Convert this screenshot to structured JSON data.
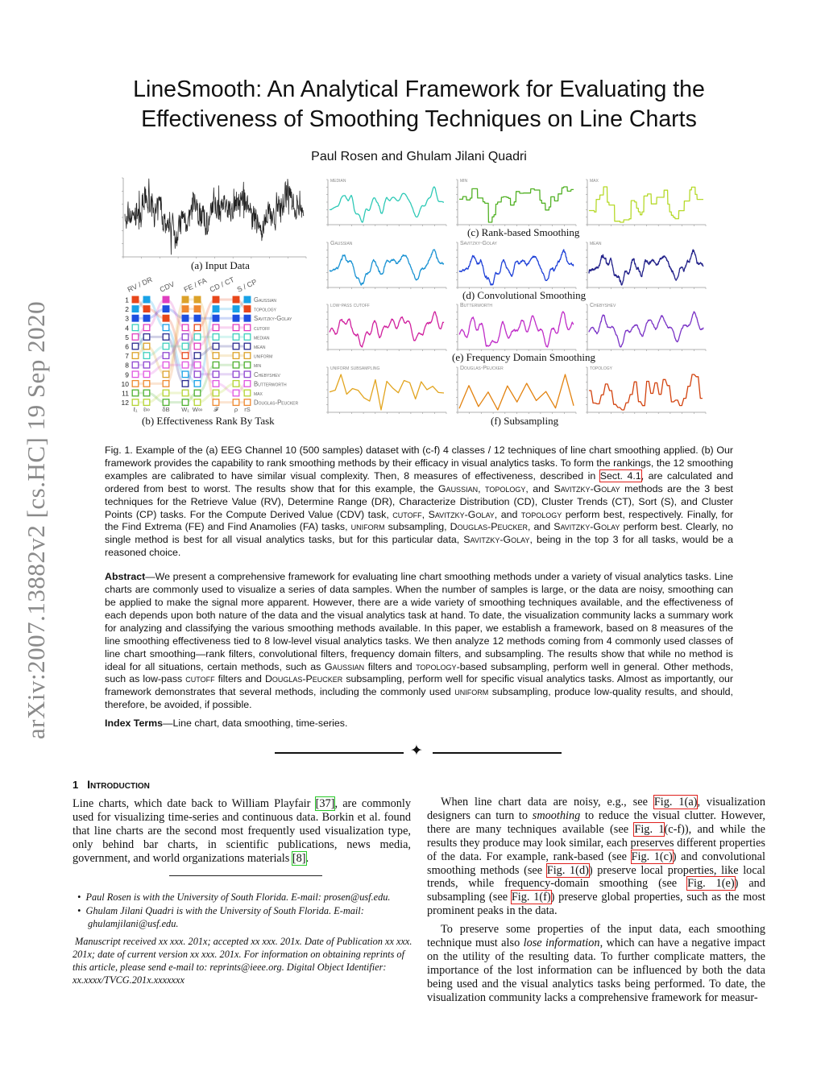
{
  "arxiv_stamp": "arXiv:2007.13882v2  [cs.HC]  19 Sep 2020",
  "title_line1": "LineSmooth: An Analytical Framework for Evaluating the",
  "title_line2": "Effectiveness of Smoothing Techniques on Line Charts",
  "authors": "Paul Rosen and Ghulam Jilani Quadri",
  "figure": {
    "sub_a": "(a)  Input Data",
    "sub_b": "(b)  Effectiveness Rank By Task",
    "sub_c": "(c)  Rank-based Smoothing",
    "sub_d": "(d)  Convolutional Smoothing",
    "sub_e": "(e)  Frequency Domain Smoothing",
    "sub_f": "(f)  Subsampling",
    "panels": [
      {
        "label": "median",
        "color": "#2ec9b6"
      },
      {
        "label": "min",
        "color": "#52b125"
      },
      {
        "label": "max",
        "color": "#b6d92a"
      },
      {
        "label": "Gaussian",
        "color": "#1b93d3"
      },
      {
        "label": "Savitzky-Golay",
        "color": "#2143d8"
      },
      {
        "label": "mean",
        "color": "#23228a"
      },
      {
        "label": "low-pass cutoff",
        "color": "#d0209e"
      },
      {
        "label": "Butterworth",
        "color": "#c02ec8"
      },
      {
        "label": "Chebyshev",
        "color": "#7a33c6"
      },
      {
        "label": "uniform subsampling",
        "color": "#e2a41e"
      },
      {
        "label": "Douglas-Peucker",
        "color": "#e2820f"
      },
      {
        "label": "topology",
        "color": "#d2420e"
      }
    ],
    "rank_chart": {
      "row_labels": [
        "1",
        "2",
        "3",
        "4",
        "5",
        "6",
        "7",
        "8",
        "9",
        "10",
        "11",
        "12"
      ],
      "task_groups": [
        "RV / DR",
        "CDV",
        "FE / FA",
        "CD / CT",
        "S / CP"
      ],
      "measures": [
        "ℓ₁",
        "ℓ∞",
        "δB",
        "W₁",
        "W∞",
        "𝓕",
        "ρ",
        "rS"
      ],
      "methods": {
        "gaussian": {
          "label": "Gaussian",
          "color": "#19a2e6"
        },
        "topology": {
          "label": "topology",
          "color": "#e8471b"
        },
        "sg": {
          "label": "Savitzky-Golay",
          "color": "#1f4fe0"
        },
        "cutoff": {
          "label": "cutoff",
          "color": "#e03ec0"
        },
        "median": {
          "label": "median",
          "color": "#3fd0be"
        },
        "mean": {
          "label": "mean",
          "color": "#2a2a8e"
        },
        "uniform": {
          "label": "uniform",
          "color": "#dca22a"
        },
        "min": {
          "label": "min",
          "color": "#4fb030"
        },
        "chebyshev": {
          "label": "Chebyshev",
          "color": "#8e45d0"
        },
        "butterworth": {
          "label": "Butterworth",
          "color": "#e055e0"
        },
        "max": {
          "label": "max",
          "color": "#b4d434"
        },
        "dp": {
          "label": "Douglas-Peucker",
          "color": "#ee8830"
        }
      },
      "legend_order": [
        "gaussian",
        "topology",
        "sg",
        "cutoff",
        "median",
        "mean",
        "uniform",
        "min",
        "chebyshev",
        "butterworth",
        "max",
        "dp"
      ],
      "rankings": [
        [
          "topology",
          "gaussian",
          "sg",
          "median",
          "cutoff",
          "mean",
          "uniform",
          "chebyshev",
          "butterworth",
          "dp",
          "min",
          "max"
        ],
        [
          "gaussian",
          "topology",
          "sg",
          "cutoff",
          "mean",
          "uniform",
          "median",
          "chebyshev",
          "butterworth",
          "dp",
          "min",
          "max"
        ],
        [
          "cutoff",
          "sg",
          "topology",
          "gaussian",
          "mean",
          "median",
          "chebyshev",
          "butterworth",
          "uniform",
          "dp",
          "max",
          "min"
        ],
        [
          "uniform",
          "dp",
          "sg",
          "cutoff",
          "chebyshev",
          "median",
          "topology",
          "butterworth",
          "gaussian",
          "mean",
          "max",
          "min"
        ],
        [
          "uniform",
          "dp",
          "sg",
          "topology",
          "median",
          "cutoff",
          "mean",
          "butterworth",
          "chebyshev",
          "gaussian",
          "min",
          "max"
        ],
        [
          "topology",
          "gaussian",
          "sg",
          "cutoff",
          "median",
          "mean",
          "uniform",
          "min",
          "chebyshev",
          "butterworth",
          "max",
          "dp"
        ],
        [
          "topology",
          "gaussian",
          "sg",
          "cutoff",
          "median",
          "mean",
          "uniform",
          "min",
          "chebyshev",
          "max",
          "butterworth",
          "dp"
        ],
        [
          "gaussian",
          "topology",
          "sg",
          "cutoff",
          "median",
          "mean",
          "uniform",
          "min",
          "chebyshev",
          "butterworth",
          "max",
          "dp"
        ]
      ],
      "filled_top": 3
    }
  },
  "caption": [
    {
      "t": "Fig. 1. Example of the (a) EEG Channel 10 (500 samples) dataset with (c-f) 4 classes / 12 techniques of line chart smoothing applied. (b) Our framework provides the capability to rank smoothing methods by their efficacy in visual analytics tasks. To form the rankings, the 12 smoothing examples are calibrated to have similar visual complexity. Then, 8 measures of effectiveness, described in "
    },
    {
      "ref": "Sect. 4.1"
    },
    {
      "t": ", are calculated and ordered from best to worst. The results show that for this example, the "
    },
    {
      "sc": "Gaussian"
    },
    {
      "t": ", "
    },
    {
      "sc": "topology"
    },
    {
      "t": ", and "
    },
    {
      "sc": "Savitzky-Golay"
    },
    {
      "t": " methods are the 3 best techniques for the Retrieve Value (RV), Determine Range (DR), Characterize Distribution (CD), Cluster Trends (CT), Sort (S), and Cluster Points (CP) tasks. For the Compute Derived Value (CDV) task, "
    },
    {
      "sc": "cutoff"
    },
    {
      "t": ", "
    },
    {
      "sc": "Savitzky-Golay"
    },
    {
      "t": ", and "
    },
    {
      "sc": "topology"
    },
    {
      "t": " perform best, respectively.  Finally, for the Find Extrema (FE) and Find Anamolies (FA) tasks, "
    },
    {
      "sc": "uniform"
    },
    {
      "t": " subsampling, "
    },
    {
      "sc": "Douglas-Peucker"
    },
    {
      "t": ", and "
    },
    {
      "sc": "Savitzky-Golay"
    },
    {
      "t": " perform best. Clearly, no single method is best for all visual analytics tasks, but for this particular data, "
    },
    {
      "sc": "Savitzky-Golay"
    },
    {
      "t": ", being in the top 3 for all tasks, would be a reasoned choice."
    }
  ],
  "abstract": [
    {
      "b": "Abstract"
    },
    {
      "t": "—We present a comprehensive framework for evaluating line chart smoothing methods under a variety of visual analytics tasks. Line charts are commonly used to visualize a series of data samples. When the number of samples is large, or the data are noisy, smoothing can be applied to make the signal more apparent. However, there are a wide variety of smoothing techniques available, and the effectiveness of each depends upon both nature of the data and the visual analytics task at hand. To date, the visualization community lacks a summary work for analyzing and classifying the various smoothing methods available. In this paper, we establish a framework, based on 8 measures of the line smoothing effectiveness tied to 8 low-level visual analytics tasks. We then analyze 12 methods coming from 4 commonly used classes of line chart smoothing—rank filters, convolutional filters, frequency domain filters, and subsampling. The results show that while no method is ideal for all situations, certain methods, such as "
    },
    {
      "sc": "Gaussian"
    },
    {
      "t": " filters and "
    },
    {
      "sc": "topology"
    },
    {
      "t": "-based subsampling, perform well in general. Other methods, such as low-pass "
    },
    {
      "sc": "cutoff"
    },
    {
      "t": " filters and "
    },
    {
      "sc": "Douglas-Peucker"
    },
    {
      "t": " subsampling, perform well for specific visual analytics tasks. Almost as importantly, our framework demonstrates that several methods, including the commonly used "
    },
    {
      "sc": "uniform"
    },
    {
      "t": " subsampling, produce low-quality results, and should, therefore, be avoided, if possible."
    }
  ],
  "index_terms": [
    {
      "b": "Index Terms"
    },
    {
      "t": "—Line chart, data smoothing, time-series."
    }
  ],
  "divider_symbol": "✦",
  "section1": {
    "number": "1",
    "title": "Introduction"
  },
  "left_para": [
    {
      "t": "Line charts, which date back to William Playfair "
    },
    {
      "cite": "[37]"
    },
    {
      "t": ", are commonly used for visualizing time-series and continuous data. Borkin et al. found that line charts are the second most frequently used visualization type, only behind bar charts, in scientific publications, news media, government, and world organizations materials "
    },
    {
      "cite": "[8]"
    },
    {
      "t": "."
    }
  ],
  "footnotes": [
    "Paul Rosen is with the University of South Florida. E-mail: prosen@usf.edu.",
    "Ghulam Jilani Quadri is with the University of South Florida. E-mail: ghulamjilani@usf.edu."
  ],
  "manuscript_note": "Manuscript received xx xxx. 201x; accepted xx xxx. 201x. Date of Publication xx xxx. 201x; date of current version xx xxx. 201x. For information on obtaining reprints of this article, please send e-mail to: reprints@ieee.org. Digital Object Identifier: xx.xxxx/TVCG.201x.xxxxxxx",
  "right_para1": [
    {
      "t": "When line chart data are noisy, e.g., see "
    },
    {
      "ref": "Fig. 1(a)"
    },
    {
      "t": ", visualization designers can turn to "
    },
    {
      "em": "smoothing"
    },
    {
      "t": " to reduce the visual clutter. However, there are many techniques available (see "
    },
    {
      "ref": "Fig. 1"
    },
    {
      "t": "(c-f)), and while the results they produce may look similar, each preserves different properties of the data. For example, rank-based (see "
    },
    {
      "ref": "Fig. 1(c)"
    },
    {
      "t": ") and convolutional smoothing methods (see "
    },
    {
      "ref": "Fig. 1(d)"
    },
    {
      "t": ") preserve local properties, like local trends, while frequency-domain smoothing (see "
    },
    {
      "ref": "Fig. 1(e)"
    },
    {
      "t": ") and subsampling (see "
    },
    {
      "ref": "Fig. 1(f)"
    },
    {
      "t": ") preserve global properties, such as the most prominent peaks in the data."
    }
  ],
  "right_para2": [
    {
      "t": "To preserve some properties of the input data, each smoothing technique must also "
    },
    {
      "em": "lose information"
    },
    {
      "t": ", which can have a negative impact on the utility of the resulting data. To further complicate matters, the importance of the lost information can be influenced by both the data being used and the visual analytics tasks being performed. To date, the visualization community lacks a comprehensive framework for measur-"
    }
  ]
}
